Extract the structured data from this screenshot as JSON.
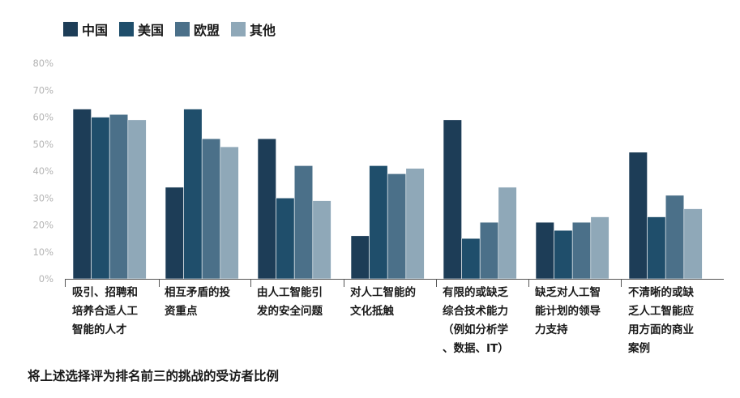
{
  "chart_data": {
    "type": "bar",
    "categories": [
      "吸引、招聘和\n培养合适人工\n智能的人才",
      "相互矛盾的投\n资重点",
      "由人工智能引\n发的安全问题",
      "对人工智能的\n文化抵触",
      "有限的或缺乏\n综合技术能力\n（例如分析学\n、数据、IT）",
      "缺乏对人工智\n能计划的领导\n力支持",
      "不清晰的或缺\n乏人工智能应\n用方面的商业\n案例"
    ],
    "series": [
      {
        "name": "中国",
        "color": "#1d3d57",
        "values": [
          63,
          34,
          52,
          16,
          59,
          21,
          47
        ]
      },
      {
        "name": "美国",
        "color": "#1f4e6b",
        "values": [
          60,
          63,
          30,
          42,
          15,
          18,
          23
        ]
      },
      {
        "name": "欧盟",
        "color": "#4b7089",
        "values": [
          61,
          52,
          42,
          39,
          21,
          21,
          31
        ]
      },
      {
        "name": "其他",
        "color": "#8fa8b8",
        "values": [
          59,
          49,
          29,
          41,
          34,
          23,
          26
        ]
      }
    ],
    "y_ticks": [
      "0%",
      "10%",
      "20%",
      "30%",
      "40%",
      "50%",
      "60%",
      "70%",
      "80%"
    ],
    "ylim": [
      0,
      80
    ],
    "grid": false,
    "legend_position": "top-left",
    "caption": "将上述选择评为排名前三的挑战的受访者比例"
  }
}
